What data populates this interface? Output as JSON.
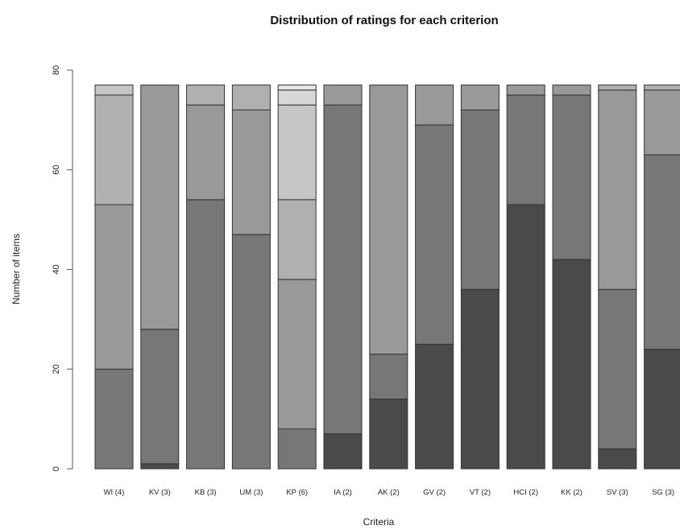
{
  "chart_data": {
    "type": "bar",
    "stacked": true,
    "title": "Distribution of ratings for each criterion",
    "xlabel": "Criteria",
    "ylabel": "Number of items",
    "ylim": [
      0,
      80
    ],
    "yticks": [
      0,
      20,
      40,
      60,
      80
    ],
    "grid": false,
    "categories": [
      "WI (4)",
      "KV (3)",
      "KB (3)",
      "UM (3)",
      "KP (6)",
      "IA (2)",
      "AK (2)",
      "GV (2)",
      "VT (2)",
      "HCI (2)",
      "KK (2)",
      "SV (3)",
      "SG (3)"
    ],
    "segment_colors": [
      "#4a4a4a",
      "#777777",
      "#999999",
      "#b0b0b0",
      "#c6c6c6",
      "#d8d8d8",
      "#e6e6e6"
    ],
    "stacks": [
      {
        "start_color_index": 1,
        "segments": [
          20,
          33,
          22,
          2
        ]
      },
      {
        "start_color_index": 0,
        "segments": [
          1,
          27,
          49
        ]
      },
      {
        "start_color_index": 1,
        "segments": [
          54,
          19,
          4
        ]
      },
      {
        "start_color_index": 1,
        "segments": [
          47,
          25,
          5
        ]
      },
      {
        "start_color_index": 1,
        "segments": [
          8,
          30,
          16,
          19,
          3,
          1
        ]
      },
      {
        "start_color_index": 0,
        "segments": [
          7,
          66,
          4
        ]
      },
      {
        "start_color_index": 0,
        "segments": [
          14,
          9,
          54
        ]
      },
      {
        "start_color_index": 0,
        "segments": [
          25,
          44,
          8
        ]
      },
      {
        "start_color_index": 0,
        "segments": [
          36,
          36,
          5
        ]
      },
      {
        "start_color_index": 0,
        "segments": [
          53,
          22,
          2
        ]
      },
      {
        "start_color_index": 0,
        "segments": [
          42,
          33,
          2
        ]
      },
      {
        "start_color_index": 0,
        "segments": [
          4,
          32,
          40,
          1
        ]
      },
      {
        "start_color_index": 0,
        "segments": [
          24,
          39,
          13,
          1
        ]
      }
    ]
  }
}
